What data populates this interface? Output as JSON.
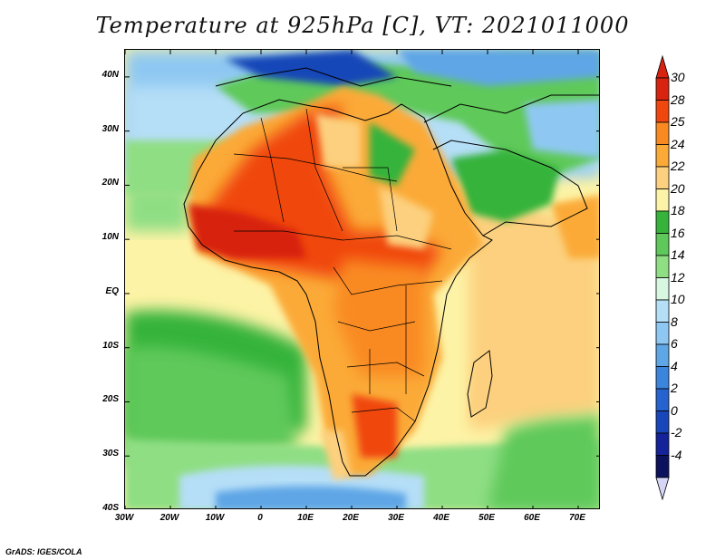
{
  "title": "Temperature at 925hPa [C], VT: 2021011000",
  "credit": "GrADS: IGES/COLA",
  "map": {
    "projection": "latlon",
    "lon_range": [
      -30,
      75
    ],
    "lat_range": [
      -40,
      45
    ],
    "lat_ticks": [
      {
        "value": 40,
        "label": "40N"
      },
      {
        "value": 30,
        "label": "30N"
      },
      {
        "value": 20,
        "label": "20N"
      },
      {
        "value": 10,
        "label": "10N"
      },
      {
        "value": 0,
        "label": "EQ"
      },
      {
        "value": -10,
        "label": "10S"
      },
      {
        "value": -20,
        "label": "20S"
      },
      {
        "value": -30,
        "label": "30S"
      },
      {
        "value": -40,
        "label": "40S"
      }
    ],
    "lon_ticks": [
      {
        "value": -30,
        "label": "30W"
      },
      {
        "value": -20,
        "label": "20W"
      },
      {
        "value": -10,
        "label": "10W"
      },
      {
        "value": 0,
        "label": "0"
      },
      {
        "value": 10,
        "label": "10E"
      },
      {
        "value": 20,
        "label": "20E"
      },
      {
        "value": 30,
        "label": "30E"
      },
      {
        "value": 40,
        "label": "40E"
      },
      {
        "value": 50,
        "label": "50E"
      },
      {
        "value": 60,
        "label": "60E"
      },
      {
        "value": 70,
        "label": "70E"
      }
    ]
  },
  "colorbar": {
    "labels": [
      "30",
      "28",
      "25",
      "24",
      "22",
      "20",
      "18",
      "16",
      "14",
      "12",
      "10",
      "8",
      "6",
      "4",
      "2",
      "0",
      "-2",
      "-4"
    ],
    "colors": [
      "#d7230f",
      "#f0470f",
      "#f98a22",
      "#fbaa38",
      "#fcd07e",
      "#fdf3a6",
      "#36b33b",
      "#5ec95a",
      "#8fde84",
      "#d8f7e0",
      "#b5def7",
      "#8ec8f2",
      "#5ea6e6",
      "#3b85dc",
      "#2563cf",
      "#1946b8",
      "#15239a",
      "#0c125e"
    ],
    "top_color": "#d7230f",
    "bottom_color": "#d5d5f5"
  }
}
